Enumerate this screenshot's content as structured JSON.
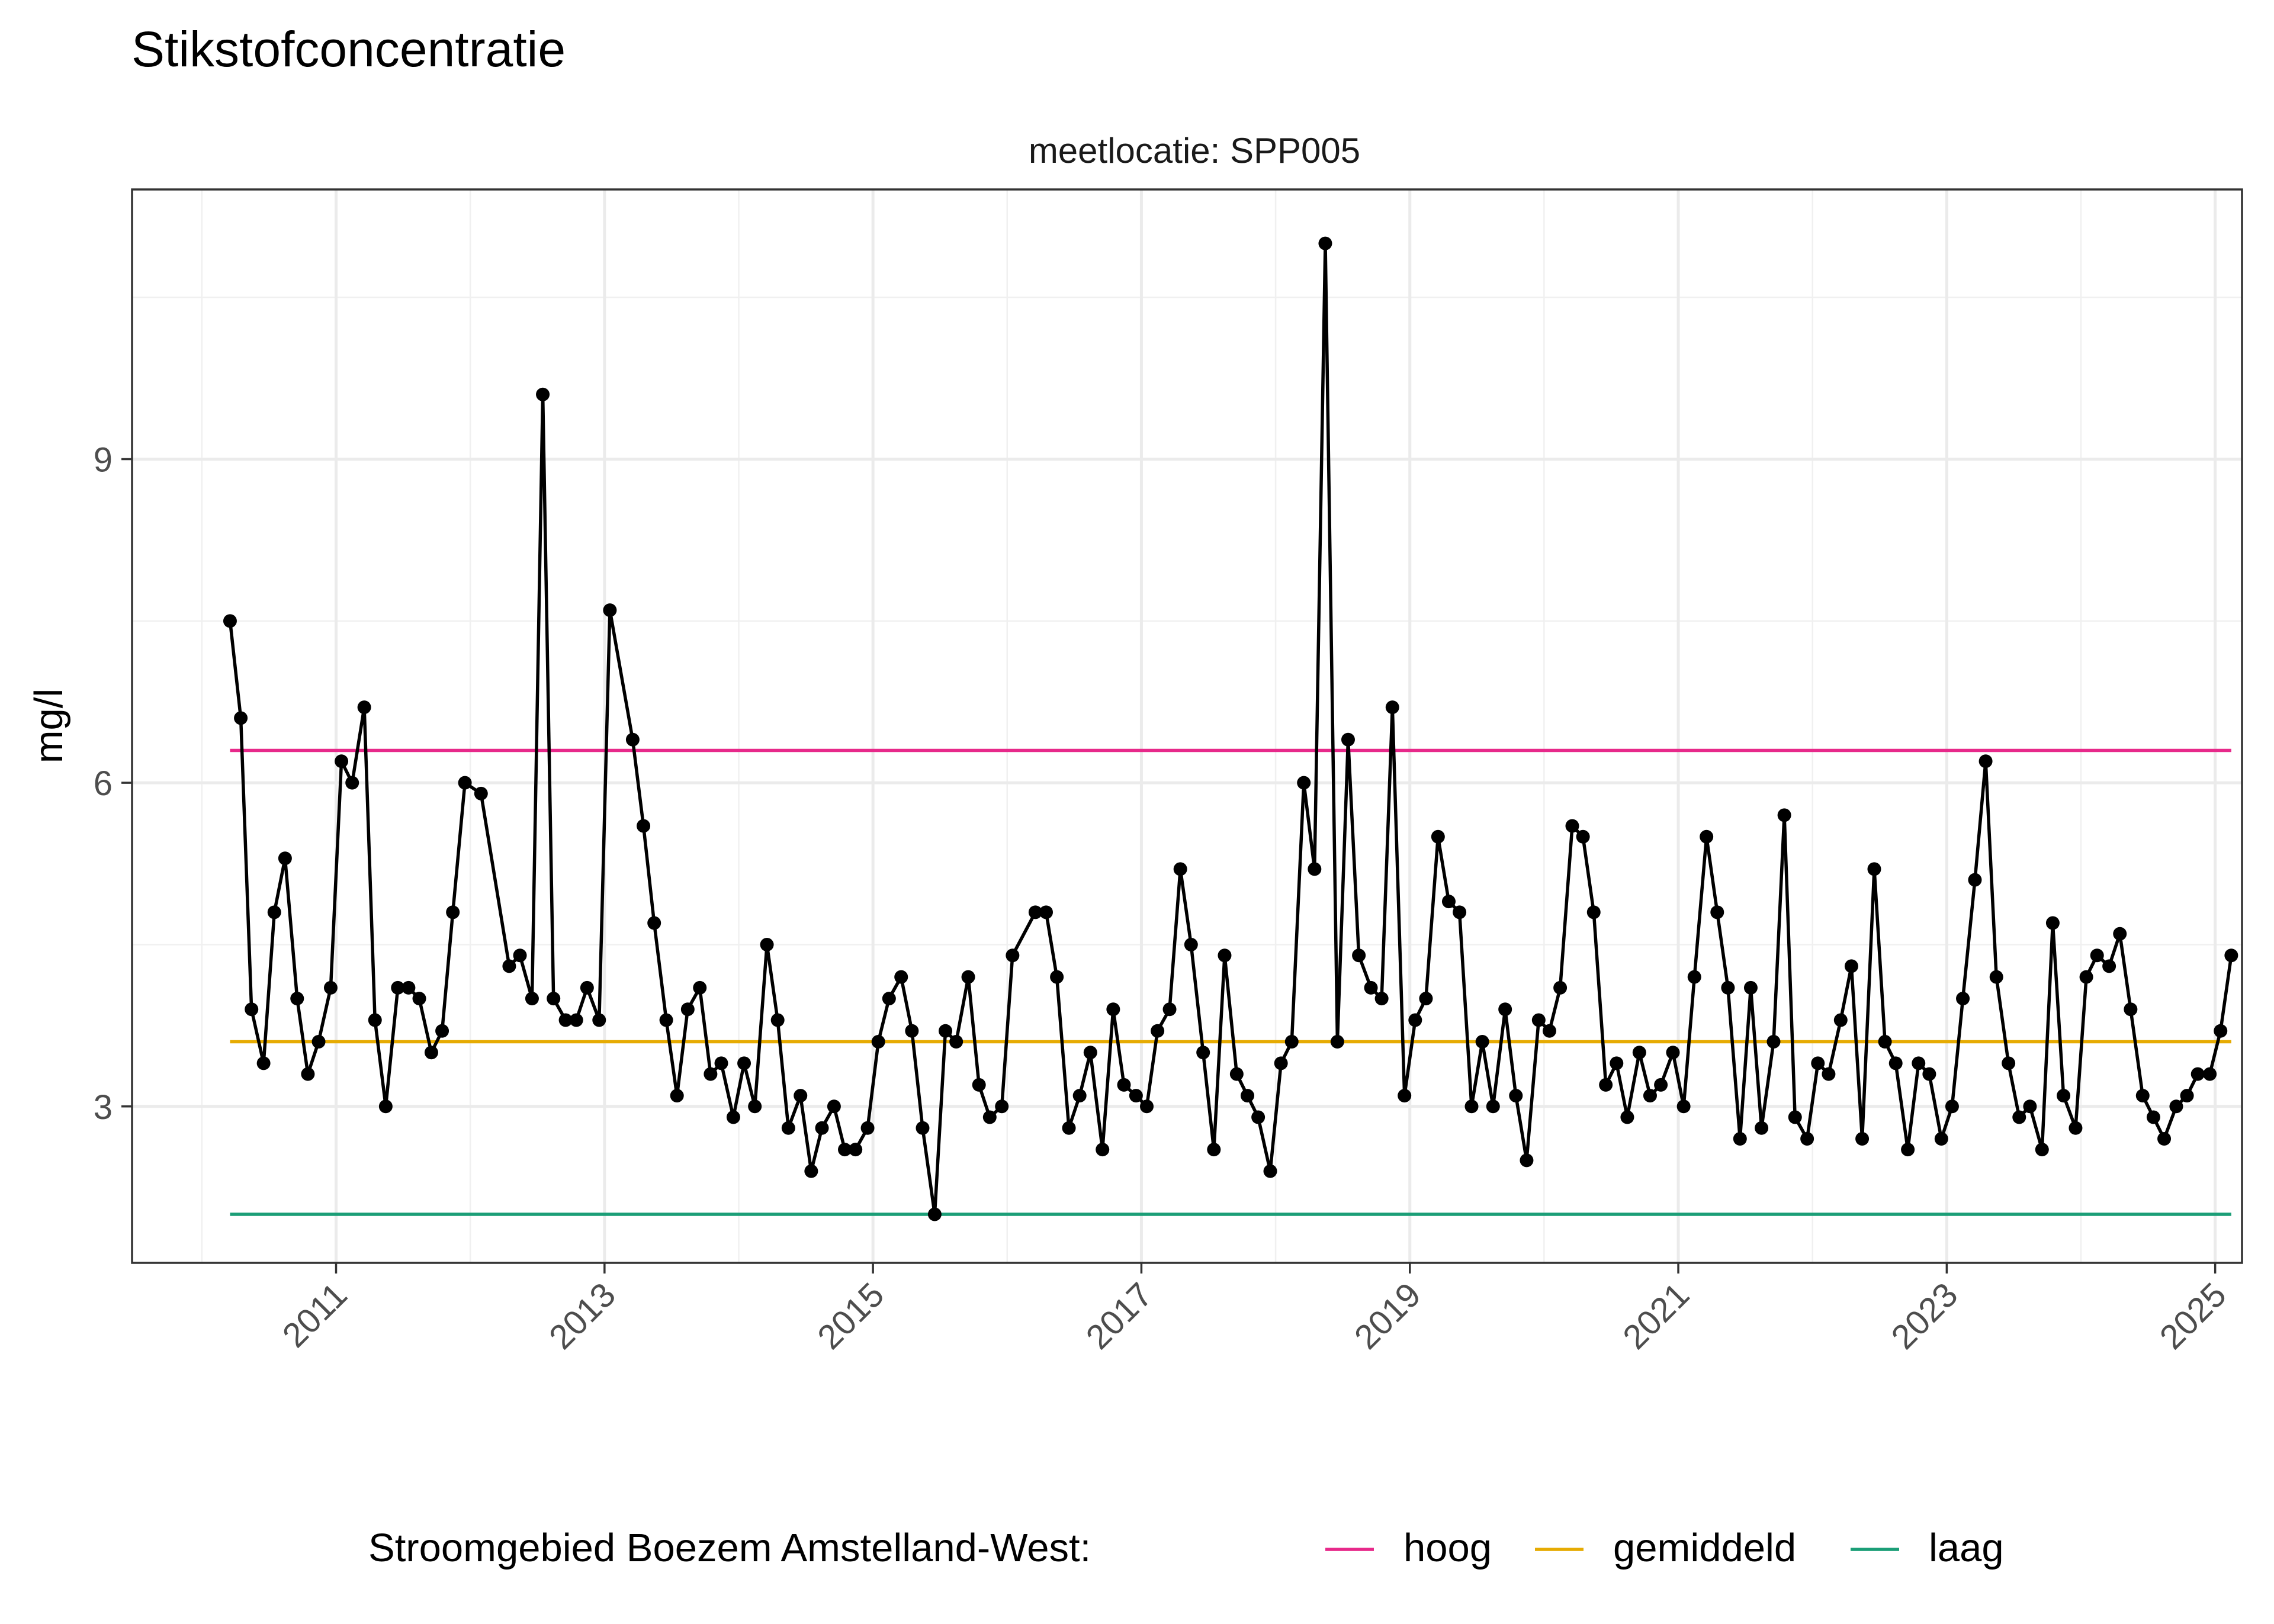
{
  "chart_data": {
    "type": "line",
    "title": "Stikstofconcentratie",
    "facet_label": "meetlocatie: SPP005",
    "xlabel": "",
    "ylabel": "mg/l",
    "x_ticks": [
      "2011",
      "2013",
      "2015",
      "2017",
      "2019",
      "2021",
      "2023",
      "2025"
    ],
    "y_ticks": [
      3,
      6,
      9
    ],
    "xlim": [
      2009.48,
      2025.2
    ],
    "ylim": [
      1.55,
      11.5
    ],
    "grid": true,
    "legend_position": "bottom",
    "series": [
      {
        "type": "line+points",
        "color": "#000000",
        "points": [
          [
            2010.21,
            7.5
          ],
          [
            2010.29,
            6.6
          ],
          [
            2010.37,
            3.9
          ],
          [
            2010.46,
            3.4
          ],
          [
            2010.54,
            4.8
          ],
          [
            2010.62,
            5.3
          ],
          [
            2010.71,
            4.0
          ],
          [
            2010.79,
            3.3
          ],
          [
            2010.87,
            3.6
          ],
          [
            2010.96,
            4.1
          ],
          [
            2011.04,
            6.2
          ],
          [
            2011.12,
            6.0
          ],
          [
            2011.21,
            6.7
          ],
          [
            2011.29,
            3.8
          ],
          [
            2011.37,
            3.0
          ],
          [
            2011.46,
            4.1
          ],
          [
            2011.54,
            4.1
          ],
          [
            2011.62,
            4.0
          ],
          [
            2011.71,
            3.5
          ],
          [
            2011.79,
            3.7
          ],
          [
            2011.87,
            4.8
          ],
          [
            2011.96,
            6.0
          ],
          [
            2012.08,
            5.9
          ],
          [
            2012.29,
            4.3
          ],
          [
            2012.37,
            4.4
          ],
          [
            2012.46,
            4.0
          ],
          [
            2012.54,
            9.6
          ],
          [
            2012.62,
            4.0
          ],
          [
            2012.71,
            3.8
          ],
          [
            2012.79,
            3.8
          ],
          [
            2012.87,
            4.1
          ],
          [
            2012.96,
            3.8
          ],
          [
            2013.04,
            7.6
          ],
          [
            2013.21,
            6.4
          ],
          [
            2013.29,
            5.6
          ],
          [
            2013.37,
            4.7
          ],
          [
            2013.46,
            3.8
          ],
          [
            2013.54,
            3.1
          ],
          [
            2013.62,
            3.9
          ],
          [
            2013.71,
            4.1
          ],
          [
            2013.79,
            3.3
          ],
          [
            2013.87,
            3.4
          ],
          [
            2013.96,
            2.9
          ],
          [
            2014.04,
            3.4
          ],
          [
            2014.12,
            3.0
          ],
          [
            2014.21,
            4.5
          ],
          [
            2014.29,
            3.8
          ],
          [
            2014.37,
            2.8
          ],
          [
            2014.46,
            3.1
          ],
          [
            2014.54,
            2.4
          ],
          [
            2014.62,
            2.8
          ],
          [
            2014.71,
            3.0
          ],
          [
            2014.79,
            2.6
          ],
          [
            2014.87,
            2.6
          ],
          [
            2014.96,
            2.8
          ],
          [
            2015.04,
            3.6
          ],
          [
            2015.12,
            4.0
          ],
          [
            2015.21,
            4.2
          ],
          [
            2015.29,
            3.7
          ],
          [
            2015.37,
            2.8
          ],
          [
            2015.46,
            2.0
          ],
          [
            2015.54,
            3.7
          ],
          [
            2015.62,
            3.6
          ],
          [
            2015.71,
            4.2
          ],
          [
            2015.79,
            3.2
          ],
          [
            2015.87,
            2.9
          ],
          [
            2015.96,
            3.0
          ],
          [
            2016.04,
            4.4
          ],
          [
            2016.21,
            4.8
          ],
          [
            2016.29,
            4.8
          ],
          [
            2016.37,
            4.2
          ],
          [
            2016.46,
            2.8
          ],
          [
            2016.54,
            3.1
          ],
          [
            2016.62,
            3.5
          ],
          [
            2016.71,
            2.6
          ],
          [
            2016.79,
            3.9
          ],
          [
            2016.87,
            3.2
          ],
          [
            2016.96,
            3.1
          ],
          [
            2017.04,
            3.0
          ],
          [
            2017.12,
            3.7
          ],
          [
            2017.21,
            3.9
          ],
          [
            2017.29,
            5.2
          ],
          [
            2017.37,
            4.5
          ],
          [
            2017.46,
            3.5
          ],
          [
            2017.54,
            2.6
          ],
          [
            2017.62,
            4.4
          ],
          [
            2017.71,
            3.3
          ],
          [
            2017.79,
            3.1
          ],
          [
            2017.87,
            2.9
          ],
          [
            2017.96,
            2.4
          ],
          [
            2018.04,
            3.4
          ],
          [
            2018.12,
            3.6
          ],
          [
            2018.21,
            6.0
          ],
          [
            2018.29,
            5.2
          ],
          [
            2018.37,
            11.0
          ],
          [
            2018.46,
            3.6
          ],
          [
            2018.54,
            6.4
          ],
          [
            2018.62,
            4.4
          ],
          [
            2018.71,
            4.1
          ],
          [
            2018.79,
            4.0
          ],
          [
            2018.87,
            6.7
          ],
          [
            2018.96,
            3.1
          ],
          [
            2019.04,
            3.8
          ],
          [
            2019.12,
            4.0
          ],
          [
            2019.21,
            5.5
          ],
          [
            2019.29,
            4.9
          ],
          [
            2019.37,
            4.8
          ],
          [
            2019.46,
            3.0
          ],
          [
            2019.54,
            3.6
          ],
          [
            2019.62,
            3.0
          ],
          [
            2019.71,
            3.9
          ],
          [
            2019.79,
            3.1
          ],
          [
            2019.87,
            2.5
          ],
          [
            2019.96,
            3.8
          ],
          [
            2020.04,
            3.7
          ],
          [
            2020.12,
            4.1
          ],
          [
            2020.21,
            5.6
          ],
          [
            2020.29,
            5.5
          ],
          [
            2020.37,
            4.8
          ],
          [
            2020.46,
            3.2
          ],
          [
            2020.54,
            3.4
          ],
          [
            2020.62,
            2.9
          ],
          [
            2020.71,
            3.5
          ],
          [
            2020.79,
            3.1
          ],
          [
            2020.87,
            3.2
          ],
          [
            2020.96,
            3.5
          ],
          [
            2021.04,
            3.0
          ],
          [
            2021.12,
            4.2
          ],
          [
            2021.21,
            5.5
          ],
          [
            2021.29,
            4.8
          ],
          [
            2021.37,
            4.1
          ],
          [
            2021.46,
            2.7
          ],
          [
            2021.54,
            4.1
          ],
          [
            2021.62,
            2.8
          ],
          [
            2021.71,
            3.6
          ],
          [
            2021.79,
            5.7
          ],
          [
            2021.87,
            2.9
          ],
          [
            2021.96,
            2.7
          ],
          [
            2022.04,
            3.4
          ],
          [
            2022.12,
            3.3
          ],
          [
            2022.21,
            3.8
          ],
          [
            2022.29,
            4.3
          ],
          [
            2022.37,
            2.7
          ],
          [
            2022.46,
            5.2
          ],
          [
            2022.54,
            3.6
          ],
          [
            2022.62,
            3.4
          ],
          [
            2022.71,
            2.6
          ],
          [
            2022.79,
            3.4
          ],
          [
            2022.87,
            3.3
          ],
          [
            2022.96,
            2.7
          ],
          [
            2023.04,
            3.0
          ],
          [
            2023.12,
            4.0
          ],
          [
            2023.21,
            5.1
          ],
          [
            2023.29,
            6.2
          ],
          [
            2023.37,
            4.2
          ],
          [
            2023.46,
            3.4
          ],
          [
            2023.54,
            2.9
          ],
          [
            2023.62,
            3.0
          ],
          [
            2023.71,
            2.6
          ],
          [
            2023.79,
            4.7
          ],
          [
            2023.87,
            3.1
          ],
          [
            2023.96,
            2.8
          ],
          [
            2024.04,
            4.2
          ],
          [
            2024.12,
            4.4
          ],
          [
            2024.21,
            4.3
          ],
          [
            2024.29,
            4.6
          ],
          [
            2024.37,
            3.9
          ],
          [
            2024.46,
            3.1
          ],
          [
            2024.54,
            2.9
          ],
          [
            2024.62,
            2.7
          ],
          [
            2024.71,
            3.0
          ],
          [
            2024.79,
            3.1
          ],
          [
            2024.87,
            3.3
          ],
          [
            2024.96,
            3.3
          ],
          [
            2025.04,
            3.7
          ],
          [
            2025.12,
            4.4
          ]
        ]
      }
    ],
    "reference_lines": [
      {
        "name": "hoog",
        "value": 6.3,
        "color": "#e7298a"
      },
      {
        "name": "gemiddeld",
        "value": 3.6,
        "color": "#e6ab02"
      },
      {
        "name": "laag",
        "value": 2.0,
        "color": "#1b9e77"
      }
    ],
    "legend": {
      "title": "Stroomgebied Boezem Amstelland-West:",
      "items": [
        "hoog",
        "gemiddeld",
        "laag"
      ]
    }
  }
}
